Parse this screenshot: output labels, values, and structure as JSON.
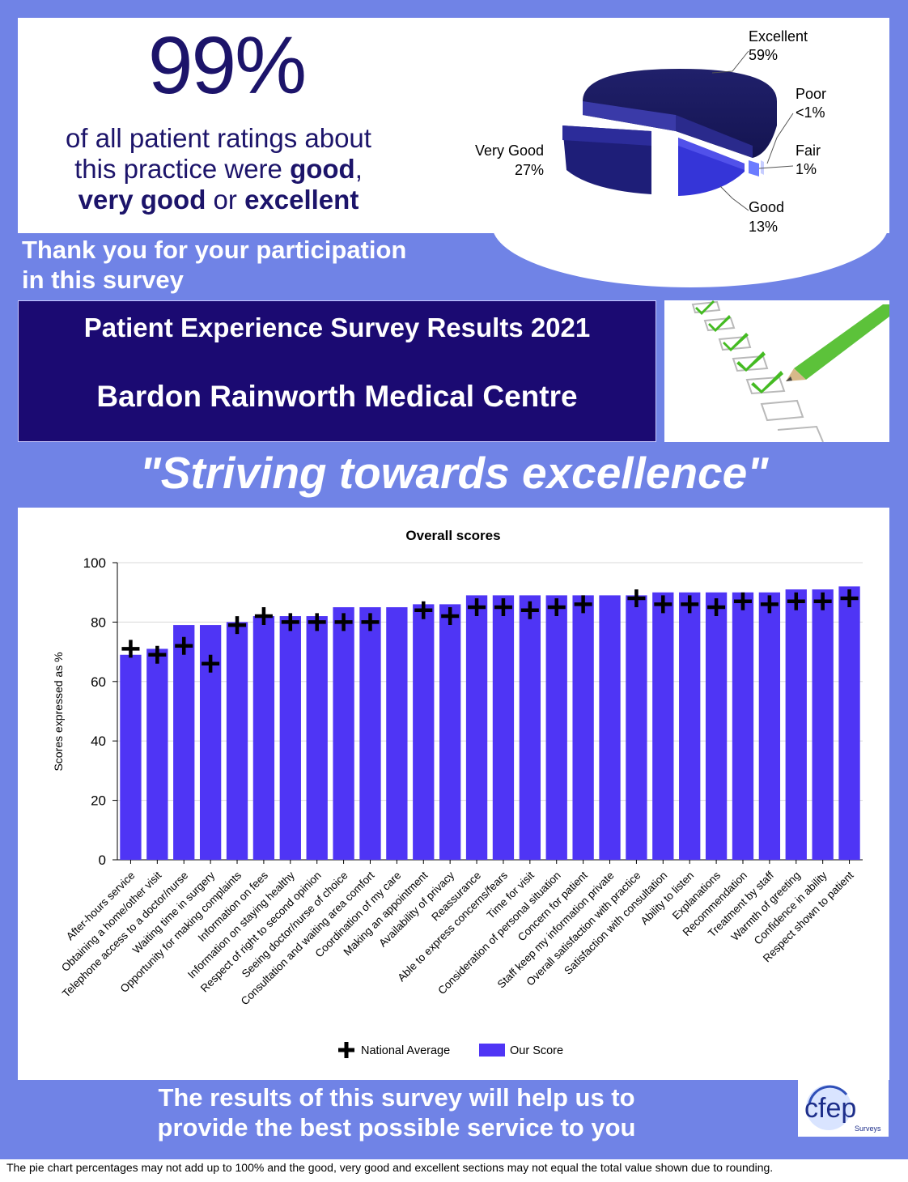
{
  "headline": {
    "percentage": "99%",
    "line1": "of all patient ratings about",
    "line2_pre": "this practice were ",
    "line2_bold": "good",
    "line2_post": ",",
    "line3_bold1": "very good",
    "line3_mid": " or ",
    "line3_bold2": "excellent"
  },
  "thanks": {
    "line1": "Thank you for your participation",
    "line2": "in this survey"
  },
  "title": {
    "line1": "Patient Experience Survey Results 2021",
    "line2": "Bardon Rainworth Medical Centre"
  },
  "slogan": "\"Striving towards excellence\"",
  "pie": {
    "labels": {
      "excellent": {
        "name": "Excellent",
        "value": "59%"
      },
      "poor": {
        "name": "Poor",
        "value": "<1%"
      },
      "fair": {
        "name": "Fair",
        "value": "1%"
      },
      "good": {
        "name": "Good",
        "value": "13%"
      },
      "very_good": {
        "name": "Very Good",
        "value": "27%"
      }
    },
    "colors": {
      "excellent": "#1a1a5e",
      "very_good": "#23237f",
      "good": "#3b3be0",
      "fair": "#6b7cff",
      "poor": "#c6cdff"
    }
  },
  "chart_data": {
    "type": "bar",
    "title": "Overall scores",
    "ylabel": "Scores expressed as %",
    "ylim": [
      0,
      100
    ],
    "yticks": [
      0,
      20,
      40,
      60,
      80,
      100
    ],
    "grid": true,
    "legend_position": "bottom",
    "categories": [
      "After-hours service",
      "Obtaining a home/other visit",
      "Telephone access to a doctor/nurse",
      "Waiting time in surgery",
      "Opportunity for making complaints",
      "Information on fees",
      "Information on staying healthy",
      "Respect of right to second opinion",
      "Seeing doctor/nurse of choice",
      "Consultation and waiting area comfort",
      "Coordination of my care",
      "Making an appointment",
      "Availability of privacy",
      "Reassurance",
      "Able to express concerns/fears",
      "Time for visit",
      "Consideration of personal situation",
      "Concern for patient",
      "Staff keep my information private",
      "Overall satisfaction with practice",
      "Satisfaction with consultation",
      "Ability to listen",
      "Explanations",
      "Recommendation",
      "Treatment by staff",
      "Warmth of greeting",
      "Confidence in ability",
      "Respect shown to patient"
    ],
    "series": [
      {
        "name": "Our Score",
        "color": "#4f35f5",
        "values": [
          69,
          71,
          79,
          79,
          80,
          82,
          82,
          82,
          85,
          85,
          85,
          86,
          86,
          89,
          89,
          89,
          89,
          89,
          89,
          89,
          90,
          90,
          90,
          90,
          90,
          91,
          91,
          92
        ]
      },
      {
        "name": "National Average",
        "marker": "cross",
        "values": [
          71,
          69,
          72,
          66,
          79,
          82,
          80,
          80,
          80,
          80,
          null,
          84,
          82,
          85,
          85,
          84,
          85,
          86,
          null,
          88,
          86,
          86,
          85,
          87,
          86,
          87,
          87,
          88
        ]
      }
    ]
  },
  "bottom": {
    "line1": "The results of this survey will help us to",
    "line2": "provide the best possible service to you"
  },
  "logo": {
    "text": "cfep",
    "sub": "Surveys"
  },
  "footnote": "The pie chart percentages may not add up to 100% and the good, very good and excellent sections may not equal the total value shown due to rounding."
}
